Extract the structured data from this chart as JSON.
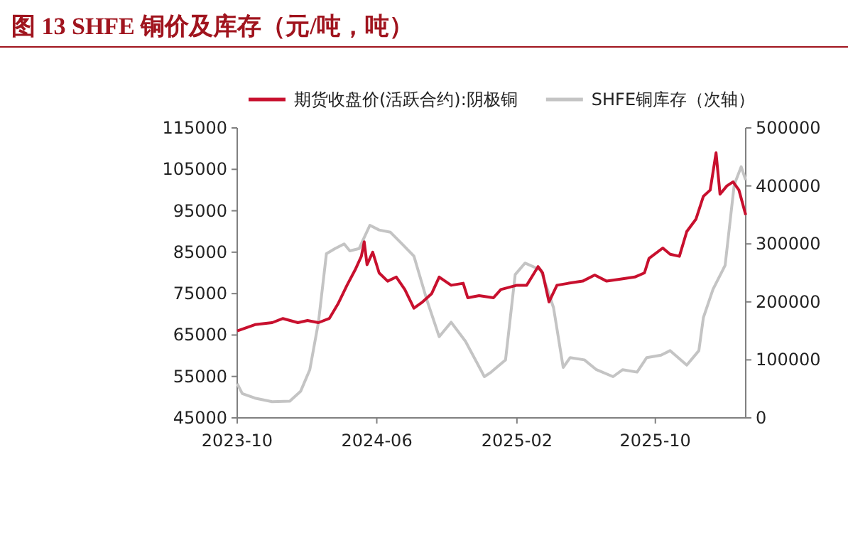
{
  "chart_data": {
    "type": "line",
    "title": "图 13  SHFE 铜价及库存（元/吨，吨）",
    "xlim": [
      "2023-10-01",
      "2026-03-08"
    ],
    "xticks": [
      "2023-10",
      "2024-06",
      "2025-02",
      "2025-10"
    ],
    "ylim": [
      45000,
      115000
    ],
    "yticks": [
      45000,
      55000,
      65000,
      75000,
      85000,
      95000,
      105000,
      115000
    ],
    "y2lim": [
      0,
      500000
    ],
    "y2ticks": [
      0,
      100000,
      200000,
      300000,
      400000,
      500000
    ],
    "legend": "top",
    "grid": false,
    "line_style": "solid",
    "series": [
      {
        "name": "期货收盘价(活跃合约):阴极铜",
        "color": "#c8102e",
        "x": [
          "2023-10-01",
          "2023-11-01",
          "2023-12-01",
          "2023-12-20",
          "2024-01-15",
          "2024-02-01",
          "2024-02-20",
          "2024-03-10",
          "2024-03-25",
          "2024-04-10",
          "2024-04-25",
          "2024-05-05",
          "2024-05-10",
          "2024-05-15",
          "2024-05-25",
          "2024-06-05",
          "2024-06-20",
          "2024-07-05",
          "2024-07-20",
          "2024-08-05",
          "2024-08-20",
          "2024-09-05",
          "2024-09-18",
          "2024-10-09",
          "2024-10-30",
          "2024-11-07",
          "2024-11-27",
          "2024-12-22",
          "2025-01-04",
          "2025-02-01",
          "2025-02-18",
          "2025-03-10",
          "2025-03-18",
          "2025-03-29",
          "2025-04-12",
          "2025-05-02",
          "2025-05-27",
          "2025-06-17",
          "2025-07-08",
          "2025-08-01",
          "2025-08-26",
          "2025-09-12",
          "2025-09-20",
          "2025-10-14",
          "2025-10-27",
          "2025-11-12",
          "2025-11-25",
          "2025-12-11",
          "2025-12-24",
          "2026-01-05",
          "2026-01-15",
          "2026-01-22",
          "2026-02-03",
          "2026-02-14",
          "2026-02-24",
          "2026-03-08"
        ],
        "values": [
          66000,
          67500,
          68000,
          69000,
          68000,
          68500,
          68000,
          69000,
          72500,
          77000,
          81000,
          84000,
          87500,
          82000,
          85000,
          80000,
          78000,
          79000,
          76000,
          71500,
          73000,
          75000,
          79000,
          77000,
          77500,
          74000,
          74500,
          74000,
          76000,
          77000,
          77000,
          81500,
          80000,
          73000,
          77000,
          77500,
          78000,
          79500,
          78000,
          78500,
          79000,
          80000,
          83500,
          86000,
          84500,
          84000,
          90000,
          93000,
          98500,
          100000,
          109000,
          99000,
          101000,
          102000,
          100000,
          94000
        ]
      },
      {
        "name": "SHFE铜库存（次轴）",
        "color": "#c4c4c4",
        "axis": "y2",
        "x": [
          "2023-10-01",
          "2023-10-10",
          "2023-11-01",
          "2023-12-01",
          "2024-01-01",
          "2024-01-20",
          "2024-02-05",
          "2024-02-20",
          "2024-03-05",
          "2024-03-20",
          "2024-04-05",
          "2024-04-15",
          "2024-05-01",
          "2024-05-20",
          "2024-06-05",
          "2024-06-25",
          "2024-07-15",
          "2024-08-05",
          "2024-08-28",
          "2024-09-18",
          "2024-10-09",
          "2024-11-03",
          "2024-12-06",
          "2024-12-18",
          "2025-01-12",
          "2025-01-29",
          "2025-02-15",
          "2025-03-15",
          "2025-04-06",
          "2025-04-23",
          "2025-05-05",
          "2025-05-30",
          "2025-06-20",
          "2025-07-19",
          "2025-08-05",
          "2025-08-30",
          "2025-09-16",
          "2025-10-11",
          "2025-10-27",
          "2025-11-25",
          "2025-12-16",
          "2025-12-24",
          "2026-01-10",
          "2026-01-31",
          "2026-02-16",
          "2026-02-28",
          "2026-03-08"
        ],
        "values": [
          59000,
          42000,
          34000,
          28000,
          29000,
          46000,
          83000,
          165000,
          283000,
          292000,
          300000,
          288000,
          292000,
          332000,
          324000,
          320000,
          300000,
          279000,
          202000,
          140000,
          165000,
          132000,
          71000,
          79000,
          100000,
          247000,
          267000,
          255000,
          190000,
          87000,
          104000,
          100000,
          83000,
          71000,
          83000,
          79000,
          104000,
          108000,
          116000,
          91000,
          116000,
          173000,
          222000,
          263000,
          402000,
          433000,
          410000
        ]
      }
    ]
  }
}
